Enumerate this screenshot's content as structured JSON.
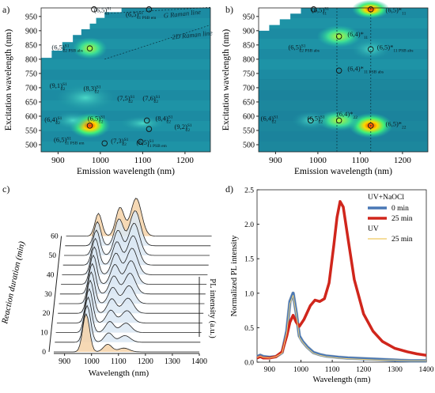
{
  "chart_data": [
    {
      "panel": "a)",
      "type": "heatmap",
      "xlabel": "Emission wavelength (nm)",
      "ylabel": "Excitation wavelength (nm)",
      "xlim": [
        860,
        1260
      ],
      "ylim": [
        475,
        980
      ],
      "xticks": [
        900,
        1000,
        1100,
        1200
      ],
      "yticks": [
        500,
        550,
        600,
        650,
        700,
        750,
        800,
        850,
        900,
        950
      ],
      "annotations": [
        {
          "name": "(6,5)",
          "sup": "S1",
          "sub": "11",
          "x": 985,
          "y": 965
        },
        {
          "name": "(6,5)",
          "sup": "S1",
          "sub": "11 PSB em",
          "x": 1060,
          "y": 950
        },
        {
          "name": "G Raman line",
          "sup": "",
          "sub": "",
          "x": 1150,
          "y": 945
        },
        {
          "name": "2D Raman line",
          "sup": "",
          "sub": "",
          "x": 1170,
          "y": 870
        },
        {
          "name": "(6,5)",
          "sup": "S1",
          "sub": "22 PSB abs",
          "x": 885,
          "y": 835
        },
        {
          "name": "(9,1)",
          "sup": "S1",
          "sub": "22",
          "x": 880,
          "y": 700
        },
        {
          "name": "(8,3)",
          "sup": "S1",
          "sub": "22",
          "x": 960,
          "y": 690
        },
        {
          "name": "(7,5)",
          "sup": "S1",
          "sub": "22",
          "x": 1040,
          "y": 655
        },
        {
          "name": "(7,6)",
          "sup": "S1",
          "sub": "22",
          "x": 1100,
          "y": 655
        },
        {
          "name": "(6,4)",
          "sup": "S1",
          "sub": "22",
          "x": 868,
          "y": 580
        },
        {
          "name": "(6,5)",
          "sup": "S1",
          "sub": "22",
          "x": 970,
          "y": 585
        },
        {
          "name": "(8,4)",
          "sup": "S1",
          "sub": "22",
          "x": 1130,
          "y": 585
        },
        {
          "name": "(9,2)",
          "sup": "S1",
          "sub": "22",
          "x": 1175,
          "y": 555
        },
        {
          "name": "(6,5)",
          "sup": "S1",
          "sub": "11 PSB em",
          "x": 890,
          "y": 510
        },
        {
          "name": "(7,3)",
          "sup": "S1",
          "sub": "22",
          "x": 1025,
          "y": 505
        },
        {
          "name": "(6,5)",
          "sup": "S1",
          "sub": "11 PSB em",
          "x": 1085,
          "y": 500
        }
      ]
    },
    {
      "panel": "b)",
      "type": "heatmap",
      "xlabel": "Emission wavelength (nm)",
      "ylabel": "Excitation wavelength (nm)",
      "xlim": [
        860,
        1260
      ],
      "ylim": [
        475,
        980
      ],
      "xticks": [
        900,
        1000,
        1100,
        1200
      ],
      "yticks": [
        500,
        550,
        600,
        650,
        700,
        750,
        800,
        850,
        900,
        950
      ],
      "annotations": [
        {
          "name": "(6,5)",
          "sup": "S1",
          "sub": "11",
          "x": 985,
          "y": 965
        },
        {
          "name": "(6,5)*",
          "sup": "",
          "sub": "11",
          "x": 1160,
          "y": 965
        },
        {
          "name": "(6,4)*",
          "sup": "",
          "sub": "11",
          "x": 1070,
          "y": 880
        },
        {
          "name": "(6,5)",
          "sup": "S1",
          "sub": "22 PSB abs",
          "x": 930,
          "y": 835
        },
        {
          "name": "(6,5)*",
          "sup": "",
          "sub": "11 PSB abs",
          "x": 1140,
          "y": 835
        },
        {
          "name": "(6,4)*",
          "sup": "",
          "sub": "11 PSB abs",
          "x": 1070,
          "y": 760
        },
        {
          "name": "(6,4)",
          "sup": "S1",
          "sub": "22",
          "x": 865,
          "y": 585
        },
        {
          "name": "(6,5)",
          "sup": "S1",
          "sub": "22",
          "x": 975,
          "y": 585
        },
        {
          "name": "(6,4)*",
          "sup": "",
          "sub": "22",
          "x": 1045,
          "y": 600
        },
        {
          "name": "(6,5)*",
          "sup": "",
          "sub": "22",
          "x": 1160,
          "y": 565
        }
      ]
    },
    {
      "panel": "c)",
      "type": "line",
      "xlabel": "Wavelength (nm)",
      "ylabel": "PL intensity (a.u.)",
      "zlabel": "Reaction duration (min)",
      "xticks": [
        900,
        1000,
        1100,
        1200,
        1300,
        1400
      ],
      "zticks": [
        0,
        10,
        20,
        30,
        40,
        50,
        60
      ],
      "note": "waterfall of 13 spectra, 5 min steps"
    },
    {
      "panel": "d)",
      "type": "line",
      "xlabel": "Wavelength (nm)",
      "ylabel": "Normalized PL intensity",
      "xlim": [
        860,
        1400
      ],
      "ylim": [
        0,
        2.5
      ],
      "xticks": [
        900,
        1000,
        1100,
        1200,
        1300,
        1400
      ],
      "yticks": [
        0.0,
        0.5,
        1.0,
        1.5,
        2.0,
        2.5
      ],
      "legend": {
        "position": "top-right",
        "group1": "UV+NaOCl",
        "group2": "UV"
      },
      "series": [
        {
          "name": "0 min",
          "group": "UV+NaOCl",
          "color": "#4a78b5",
          "x": [
            860,
            870,
            880,
            900,
            920,
            940,
            955,
            965,
            975,
            985,
            995,
            1005,
            1020,
            1040,
            1060,
            1080,
            1100,
            1120,
            1150,
            1200,
            1250,
            1300,
            1350,
            1400
          ],
          "y": [
            0.08,
            0.1,
            0.08,
            0.07,
            0.08,
            0.14,
            0.45,
            0.88,
            1.0,
            0.72,
            0.38,
            0.3,
            0.22,
            0.14,
            0.11,
            0.09,
            0.08,
            0.07,
            0.06,
            0.05,
            0.04,
            0.03,
            0.02,
            0.02
          ]
        },
        {
          "name": "25 min",
          "group": "UV+NaOCl",
          "color": "#d0261c",
          "x": [
            860,
            870,
            880,
            900,
            920,
            940,
            955,
            965,
            975,
            985,
            995,
            1010,
            1030,
            1045,
            1060,
            1075,
            1090,
            1105,
            1115,
            1125,
            1135,
            1150,
            1170,
            1200,
            1230,
            1260,
            1300,
            1340,
            1370,
            1400
          ],
          "y": [
            0.06,
            0.08,
            0.06,
            0.06,
            0.08,
            0.15,
            0.38,
            0.58,
            0.68,
            0.58,
            0.52,
            0.62,
            0.82,
            0.9,
            0.88,
            0.92,
            1.15,
            1.7,
            2.1,
            2.33,
            2.25,
            1.8,
            1.2,
            0.7,
            0.45,
            0.3,
            0.2,
            0.15,
            0.12,
            0.1
          ]
        },
        {
          "name": "25 min",
          "group": "UV",
          "color": "#f2d27a",
          "x": [
            860,
            870,
            880,
            900,
            920,
            940,
            955,
            965,
            975,
            985,
            995,
            1005,
            1020,
            1040,
            1060,
            1080,
            1100,
            1120,
            1150,
            1200,
            1250,
            1300,
            1350,
            1400
          ],
          "y": [
            0.07,
            0.09,
            0.07,
            0.06,
            0.08,
            0.13,
            0.43,
            0.85,
            0.97,
            0.7,
            0.36,
            0.29,
            0.21,
            0.13,
            0.1,
            0.08,
            0.07,
            0.06,
            0.05,
            0.04,
            0.03,
            0.03,
            0.02,
            0.02
          ]
        }
      ]
    }
  ]
}
